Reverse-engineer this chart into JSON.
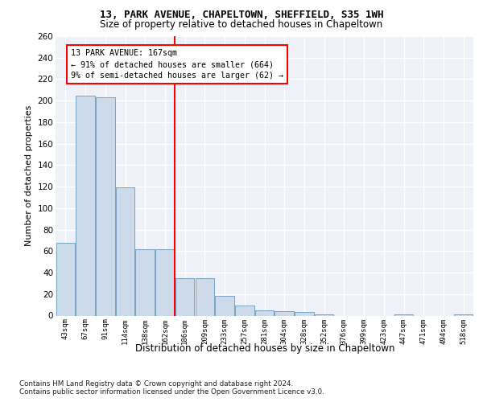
{
  "title1": "13, PARK AVENUE, CHAPELTOWN, SHEFFIELD, S35 1WH",
  "title2": "Size of property relative to detached houses in Chapeltown",
  "xlabel": "Distribution of detached houses by size in Chapeltown",
  "ylabel": "Number of detached properties",
  "categories": [
    "43sqm",
    "67sqm",
    "91sqm",
    "114sqm",
    "138sqm",
    "162sqm",
    "186sqm",
    "209sqm",
    "233sqm",
    "257sqm",
    "281sqm",
    "304sqm",
    "328sqm",
    "352sqm",
    "376sqm",
    "399sqm",
    "423sqm",
    "447sqm",
    "471sqm",
    "494sqm",
    "518sqm"
  ],
  "values": [
    68,
    205,
    203,
    119,
    62,
    62,
    35,
    35,
    18,
    9,
    5,
    4,
    3,
    1,
    0,
    0,
    0,
    1,
    0,
    0,
    1
  ],
  "bar_color": "#ccdaea",
  "bar_edge_color": "#6699bb",
  "vline_x": 5.5,
  "vline_color": "red",
  "annotation_text": "13 PARK AVENUE: 167sqm\n← 91% of detached houses are smaller (664)\n9% of semi-detached houses are larger (62) →",
  "annotation_box_color": "white",
  "annotation_box_edge_color": "red",
  "ylim": [
    0,
    260
  ],
  "yticks": [
    0,
    20,
    40,
    60,
    80,
    100,
    120,
    140,
    160,
    180,
    200,
    220,
    240,
    260
  ],
  "footer_text": "Contains HM Land Registry data © Crown copyright and database right 2024.\nContains public sector information licensed under the Open Government Licence v3.0.",
  "bg_color": "#eef2f8",
  "grid_color": "white"
}
